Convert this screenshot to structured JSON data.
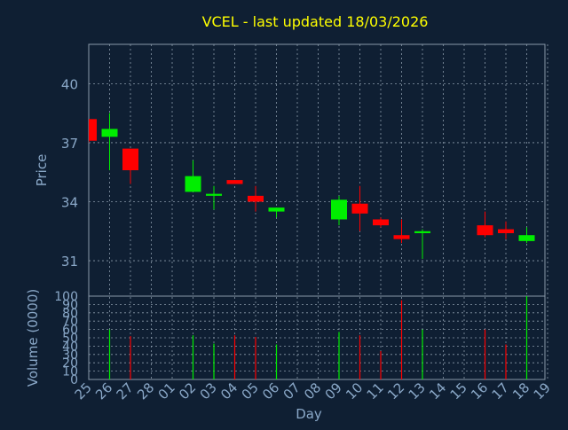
{
  "chart_data": {
    "title": "VCEL - last updated 18/03/2026",
    "colors": {
      "background": "#0f1f33",
      "title": "#ffff00",
      "axis_text": "#8aa8c8",
      "grid": "#8a9aaa",
      "up": "#00ee00",
      "down": "#ff0000"
    },
    "x_tick_labels": [
      "25",
      "26",
      "27",
      "28",
      "01",
      "02",
      "03",
      "04",
      "05",
      "06",
      "07",
      "08",
      "09",
      "10",
      "11",
      "12",
      "13",
      "14",
      "15",
      "16",
      "17",
      "18",
      "19"
    ],
    "xlabel": "Day",
    "grid": true,
    "panels": [
      {
        "type": "candlestick",
        "ylabel": "Price",
        "ylim": [
          29.2,
          42.0
        ],
        "yticks": [
          31,
          34,
          37,
          40
        ],
        "candles": [
          {
            "day": "25",
            "open": 38.2,
            "high": 38.2,
            "low": 37.0,
            "close": 37.1
          },
          {
            "day": "26",
            "open": 37.3,
            "high": 38.5,
            "low": 35.6,
            "close": 37.7
          },
          {
            "day": "27",
            "open": 36.7,
            "high": 36.7,
            "low": 34.9,
            "close": 35.6
          },
          {
            "day": "02",
            "open": 34.5,
            "high": 36.1,
            "low": 34.5,
            "close": 35.3
          },
          {
            "day": "03",
            "open": 34.3,
            "high": 34.8,
            "low": 33.6,
            "close": 34.4
          },
          {
            "day": "04",
            "open": 35.1,
            "high": 35.1,
            "low": 34.9,
            "close": 34.9
          },
          {
            "day": "05",
            "open": 34.3,
            "high": 34.8,
            "low": 33.5,
            "close": 34.0
          },
          {
            "day": "06",
            "open": 33.5,
            "high": 33.7,
            "low": 33.2,
            "close": 33.7
          },
          {
            "day": "09",
            "open": 33.1,
            "high": 34.3,
            "low": 32.8,
            "close": 34.1
          },
          {
            "day": "10",
            "open": 33.9,
            "high": 34.8,
            "low": 32.5,
            "close": 33.4
          },
          {
            "day": "11",
            "open": 33.1,
            "high": 33.2,
            "low": 32.7,
            "close": 32.8
          },
          {
            "day": "12",
            "open": 32.3,
            "high": 33.1,
            "low": 31.9,
            "close": 32.1
          },
          {
            "day": "13",
            "open": 32.4,
            "high": 32.6,
            "low": 31.1,
            "close": 32.5
          },
          {
            "day": "16",
            "open": 32.8,
            "high": 33.5,
            "low": 32.2,
            "close": 32.3
          },
          {
            "day": "17",
            "open": 32.6,
            "high": 33.0,
            "low": 32.1,
            "close": 32.4
          },
          {
            "day": "18",
            "open": 32.0,
            "high": 32.7,
            "low": 31.9,
            "close": 32.3
          }
        ]
      },
      {
        "type": "bar",
        "ylabel": "Volume (0000)",
        "ylim": [
          0,
          100
        ],
        "yticks": [
          0,
          10,
          20,
          30,
          40,
          50,
          60,
          70,
          80,
          90,
          100
        ],
        "bars": [
          {
            "day": "26",
            "value": 60,
            "direction": "up"
          },
          {
            "day": "27",
            "value": 52,
            "direction": "down"
          },
          {
            "day": "02",
            "value": 53,
            "direction": "up"
          },
          {
            "day": "03",
            "value": 43,
            "direction": "up"
          },
          {
            "day": "04",
            "value": 53,
            "direction": "down"
          },
          {
            "day": "05",
            "value": 51,
            "direction": "down"
          },
          {
            "day": "06",
            "value": 42,
            "direction": "up"
          },
          {
            "day": "09",
            "value": 57,
            "direction": "up"
          },
          {
            "day": "10",
            "value": 53,
            "direction": "down"
          },
          {
            "day": "11",
            "value": 34,
            "direction": "down"
          },
          {
            "day": "12",
            "value": 95,
            "direction": "down"
          },
          {
            "day": "13",
            "value": 60,
            "direction": "up"
          },
          {
            "day": "16",
            "value": 60,
            "direction": "down"
          },
          {
            "day": "17",
            "value": 42,
            "direction": "down"
          },
          {
            "day": "18",
            "value": 100,
            "direction": "up"
          }
        ]
      }
    ]
  }
}
